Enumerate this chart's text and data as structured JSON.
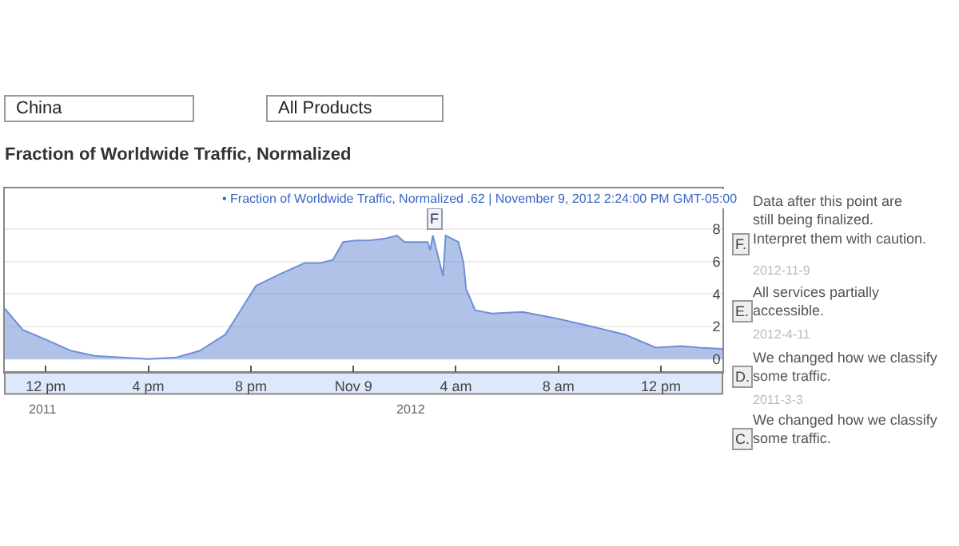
{
  "chart_data": {
    "type": "area",
    "title": "Fraction of Worldwide Traffic, Normalized",
    "x": [
      "2012-11-08T10:24",
      "2012-11-08T11:06",
      "2012-11-08T12:00",
      "2012-11-08T13:00",
      "2012-11-08T13:54",
      "2012-11-08T16:00",
      "2012-11-08T17:06",
      "2012-11-08T18:00",
      "2012-11-08T19:00",
      "2012-11-08T19:36",
      "2012-11-08T20:12",
      "2012-11-08T21:06",
      "2012-11-08T22:06",
      "2012-11-08T22:42",
      "2012-11-08T23:12",
      "2012-11-08T23:36",
      "2012-11-09T00:06",
      "2012-11-09T00:36",
      "2012-11-09T01:12",
      "2012-11-09T01:42",
      "2012-11-09T02:00",
      "2012-11-09T02:54",
      "2012-11-09T03:00",
      "2012-11-09T03:06",
      "2012-11-09T03:30",
      "2012-11-09T03:36",
      "2012-11-09T04:06",
      "2012-11-09T04:18",
      "2012-11-09T04:24",
      "2012-11-09T04:45",
      "2012-11-09T05:24",
      "2012-11-09T06:36",
      "2012-11-09T07:54",
      "2012-11-09T09:18",
      "2012-11-09T10:36",
      "2012-11-09T11:48",
      "2012-11-09T12:48",
      "2012-11-09T13:30",
      "2012-11-09T14:24"
    ],
    "series": [
      {
        "color": "#6f8fd6",
        "values": [
          3.1,
          1.8,
          1.2,
          0.5,
          0.2,
          0.0,
          0.1,
          0.5,
          1.5,
          3.0,
          4.5,
          5.2,
          5.9,
          5.9,
          6.1,
          7.2,
          7.3,
          7.3,
          7.4,
          7.6,
          7.2,
          7.2,
          6.7,
          7.6,
          5.1,
          7.6,
          7.2,
          5.9,
          4.3,
          3.0,
          2.8,
          2.9,
          2.5,
          2.0,
          1.5,
          0.7,
          0.8,
          0.7,
          0.62
        ]
      }
    ],
    "xlim": [
      "2012-11-08T10:24",
      "2012-11-09T14:24"
    ],
    "xticks": [
      {
        "value": "2012-11-08T12:00",
        "label": "12 pm"
      },
      {
        "value": "2012-11-08T16:00",
        "label": "4 pm"
      },
      {
        "value": "2012-11-08T20:00",
        "label": "8 pm"
      },
      {
        "value": "2012-11-09T00:00",
        "label": "Nov 9"
      },
      {
        "value": "2012-11-09T04:00",
        "label": "4 am"
      },
      {
        "value": "2012-11-09T08:00",
        "label": "8 am"
      },
      {
        "value": "2012-11-09T12:00",
        "label": "12 pm"
      }
    ],
    "ylim": [
      -0.8,
      10.5
    ],
    "yticks": [
      0,
      2,
      4,
      6,
      8
    ],
    "grid": "y",
    "annotations": [
      {
        "text": "F",
        "x": "2012-11-09T03:12",
        "y": 8.6
      },
      "China",
      "All Products",
      "• Fraction of Worldwide Traffic, Normalized .62 | November 9, 2012 2:24:00 PM GMT-05:00",
      "F.",
      "Data after this point are still being finalized. Interpret them with caution.",
      "2012-11-9",
      "E.",
      "All services partially accessible.",
      "2012-4-11",
      "D.",
      "We changed how we classify some traffic.",
      "2011-3-3",
      "C.",
      "We changed how we classify some traffic.",
      "2011",
      "2012"
    ]
  }
}
